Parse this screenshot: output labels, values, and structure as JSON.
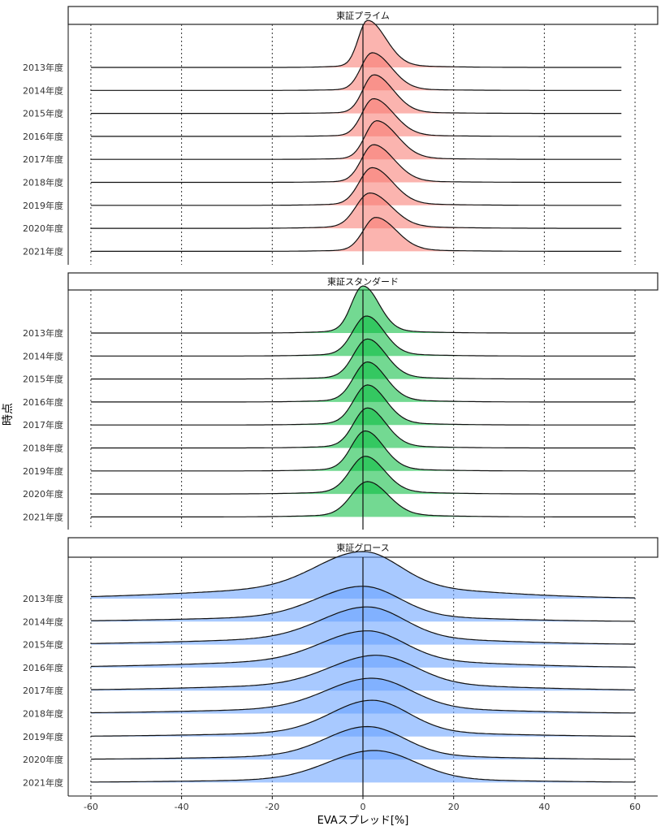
{
  "chart_data": {
    "type": "ridgeline",
    "xlabel": "EVAスプレッド[%]",
    "ylabel": "時点",
    "xlim": [
      -65,
      65
    ],
    "x_ticks": [
      -60,
      -40,
      -20,
      0,
      20,
      40,
      60
    ],
    "x_tick_labels": [
      "-60",
      "-40",
      "-20",
      "0",
      "20",
      "40",
      "60"
    ],
    "categories": [
      "2013年度",
      "2014年度",
      "2015年度",
      "2016年度",
      "2017年度",
      "2018年度",
      "2019年度",
      "2020年度",
      "2021年度"
    ],
    "vertical_reference_line": 0,
    "grid": "dotted vertical lines at each x tick",
    "panels": [
      {
        "title": "東証プライム",
        "color": "#F8766D",
        "x_range": [
          -60,
          57
        ],
        "series": [
          {
            "name": "2013年度",
            "peak_x": 1.0,
            "sd_left": 2.0,
            "sd_right": 4.0,
            "height": 1.0,
            "tail": 0.04
          },
          {
            "name": "2014年度",
            "peak_x": 2.0,
            "sd_left": 2.4,
            "sd_right": 4.2,
            "height": 0.8,
            "tail": 0.03
          },
          {
            "name": "2015年度",
            "peak_x": 2.4,
            "sd_left": 2.4,
            "sd_right": 4.2,
            "height": 0.82,
            "tail": 0.03
          },
          {
            "name": "2016年度",
            "peak_x": 2.3,
            "sd_left": 2.5,
            "sd_right": 4.4,
            "height": 0.8,
            "tail": 0.03
          },
          {
            "name": "2017年度",
            "peak_x": 3.0,
            "sd_left": 2.5,
            "sd_right": 4.5,
            "height": 0.82,
            "tail": 0.03
          },
          {
            "name": "2018年度",
            "peak_x": 2.3,
            "sd_left": 2.6,
            "sd_right": 4.5,
            "height": 0.8,
            "tail": 0.03
          },
          {
            "name": "2019年度",
            "peak_x": 2.0,
            "sd_left": 2.8,
            "sd_right": 4.5,
            "height": 0.8,
            "tail": 0.04
          },
          {
            "name": "2020年度",
            "peak_x": 1.5,
            "sd_left": 3.0,
            "sd_right": 4.7,
            "height": 0.75,
            "tail": 0.05
          },
          {
            "name": "2021年度",
            "peak_x": 2.8,
            "sd_left": 2.7,
            "sd_right": 4.5,
            "height": 0.72,
            "tail": 0.04
          }
        ]
      },
      {
        "title": "東証スタンダード",
        "color": "#00BA38",
        "x_range": [
          -60,
          60
        ],
        "series": [
          {
            "name": "2013年度",
            "peak_x": 0.0,
            "sd_left": 2.5,
            "sd_right": 3.5,
            "height": 1.0,
            "tail": 0.05
          },
          {
            "name": "2014年度",
            "peak_x": 0.8,
            "sd_left": 3.0,
            "sd_right": 3.8,
            "height": 0.85,
            "tail": 0.05
          },
          {
            "name": "2015年度",
            "peak_x": 1.0,
            "sd_left": 3.0,
            "sd_right": 4.0,
            "height": 0.85,
            "tail": 0.05
          },
          {
            "name": "2016年度",
            "peak_x": 1.0,
            "sd_left": 3.0,
            "sd_right": 4.0,
            "height": 0.85,
            "tail": 0.05
          },
          {
            "name": "2017年度",
            "peak_x": 1.0,
            "sd_left": 3.0,
            "sd_right": 4.0,
            "height": 0.85,
            "tail": 0.05
          },
          {
            "name": "2018年度",
            "peak_x": 1.0,
            "sd_left": 3.0,
            "sd_right": 4.0,
            "height": 0.85,
            "tail": 0.05
          },
          {
            "name": "2019年度",
            "peak_x": 0.5,
            "sd_left": 3.0,
            "sd_right": 4.0,
            "height": 0.85,
            "tail": 0.05
          },
          {
            "name": "2020年度",
            "peak_x": 0.5,
            "sd_left": 3.3,
            "sd_right": 4.2,
            "height": 0.8,
            "tail": 0.06
          },
          {
            "name": "2021年度",
            "peak_x": 1.0,
            "sd_left": 3.5,
            "sd_right": 4.5,
            "height": 0.75,
            "tail": 0.06
          }
        ]
      },
      {
        "title": "東証グロース",
        "color": "#619CFF",
        "x_range": [
          -60,
          60
        ],
        "series": [
          {
            "name": "2013年度",
            "peak_x": 0.0,
            "sd_left": 10.0,
            "sd_right": 8.0,
            "height": 1.0,
            "tail": 0.25
          },
          {
            "name": "2014年度",
            "peak_x": 0.0,
            "sd_left": 10.0,
            "sd_right": 8.0,
            "height": 0.75,
            "tail": 0.15
          },
          {
            "name": "2015年度",
            "peak_x": 1.0,
            "sd_left": 10.0,
            "sd_right": 8.0,
            "height": 0.8,
            "tail": 0.18
          },
          {
            "name": "2016年度",
            "peak_x": 1.0,
            "sd_left": 10.0,
            "sd_right": 8.0,
            "height": 0.78,
            "tail": 0.2
          },
          {
            "name": "2017年度",
            "peak_x": 3.0,
            "sd_left": 10.0,
            "sd_right": 8.5,
            "height": 0.75,
            "tail": 0.18
          },
          {
            "name": "2018年度",
            "peak_x": 2.0,
            "sd_left": 10.0,
            "sd_right": 8.5,
            "height": 0.75,
            "tail": 0.15
          },
          {
            "name": "2019年度",
            "peak_x": 2.0,
            "sd_left": 9.0,
            "sd_right": 8.0,
            "height": 0.77,
            "tail": 0.12
          },
          {
            "name": "2020年度",
            "peak_x": 1.0,
            "sd_left": 9.0,
            "sd_right": 8.0,
            "height": 0.7,
            "tail": 0.12
          },
          {
            "name": "2021年度",
            "peak_x": 2.5,
            "sd_left": 10.0,
            "sd_right": 9.0,
            "height": 0.68,
            "tail": 0.1
          }
        ]
      }
    ]
  }
}
